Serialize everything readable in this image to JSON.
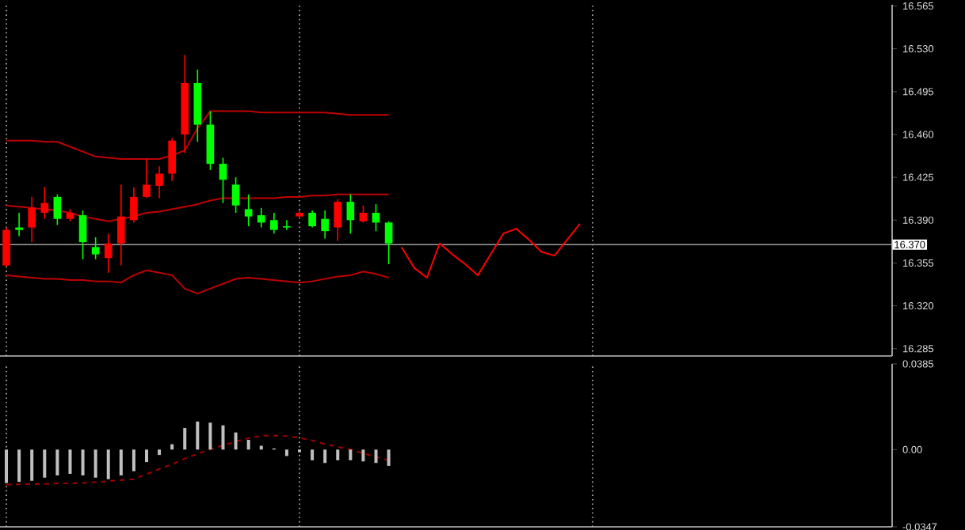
{
  "chart_data": [
    {
      "type": "candlestick",
      "categories": [
        null,
        null,
        null,
        null,
        null,
        null,
        null,
        null,
        null,
        null,
        null,
        null,
        null,
        null,
        null,
        null,
        null,
        null,
        null,
        null,
        null,
        null,
        null,
        null,
        null,
        null,
        null,
        null,
        null,
        null,
        null,
        null,
        null,
        null,
        null,
        null,
        null,
        null,
        null,
        null,
        null,
        null,
        null,
        null,
        null,
        null,
        null,
        null,
        null,
        null,
        null,
        null,
        null,
        null,
        null,
        null,
        null,
        null,
        null,
        null,
        null,
        null,
        null,
        null,
        null,
        null,
        null,
        null,
        null,
        null
      ],
      "ohlc": [
        [
          16.353,
          16.384,
          16.352,
          16.382
        ],
        [
          16.384,
          16.396,
          16.377,
          16.382
        ],
        [
          16.384,
          16.409,
          16.372,
          16.4
        ],
        [
          16.396,
          16.417,
          16.391,
          16.404
        ],
        [
          16.409,
          16.411,
          16.386,
          16.391
        ],
        [
          16.391,
          16.399,
          16.389,
          16.396
        ],
        [
          16.394,
          16.398,
          16.358,
          16.372
        ],
        [
          16.368,
          16.376,
          16.358,
          16.362
        ],
        [
          16.359,
          16.379,
          16.347,
          16.371
        ],
        [
          16.371,
          16.419,
          16.353,
          16.393
        ],
        [
          16.39,
          16.417,
          16.388,
          16.409
        ],
        [
          16.409,
          16.44,
          16.408,
          16.419
        ],
        [
          16.418,
          16.434,
          16.408,
          16.428
        ],
        [
          16.428,
          16.457,
          16.422,
          16.455
        ],
        [
          16.46,
          16.525,
          16.445,
          16.502
        ],
        [
          16.502,
          16.513,
          16.454,
          16.468
        ],
        [
          16.468,
          16.479,
          16.431,
          16.436
        ],
        [
          16.436,
          16.441,
          16.404,
          16.423
        ],
        [
          16.419,
          16.425,
          16.396,
          16.402
        ],
        [
          16.399,
          16.411,
          16.385,
          16.393
        ],
        [
          16.394,
          16.4,
          16.384,
          16.388
        ],
        [
          16.39,
          16.396,
          16.379,
          16.382
        ],
        [
          16.385,
          16.39,
          16.382,
          16.384
        ],
        [
          16.393,
          16.398,
          16.391,
          16.396
        ],
        [
          16.396,
          16.398,
          16.384,
          16.385
        ],
        [
          16.391,
          16.398,
          16.375,
          16.381
        ],
        [
          16.384,
          16.407,
          16.373,
          16.405
        ],
        [
          16.405,
          16.411,
          16.379,
          16.39
        ],
        [
          16.389,
          16.402,
          16.388,
          16.396
        ],
        [
          16.396,
          16.403,
          16.381,
          16.388
        ],
        [
          16.388,
          16.389,
          16.354,
          16.371
        ],
        null,
        null,
        null,
        null,
        null,
        null,
        null,
        null,
        null,
        null,
        null,
        null,
        null,
        null,
        null,
        null,
        null,
        null,
        null,
        null,
        null,
        null,
        null,
        null,
        null,
        null,
        null,
        null,
        null,
        null,
        null,
        null,
        null,
        null,
        null,
        null,
        null,
        null,
        null
      ],
      "colors": [
        "#ff0000",
        "#00ff00",
        "#ff0000",
        "#ff0000",
        "#00ff00",
        "#ff0000",
        "#00ff00",
        "#00ff00",
        "#ff0000",
        "#ff0000",
        "#ff0000",
        "#ff0000",
        "#ff0000",
        "#ff0000",
        "#ff0000",
        "#00ff00",
        "#00ff00",
        "#00ff00",
        "#00ff00",
        "#00ff00",
        "#00ff00",
        "#00ff00",
        "#00ff00",
        "#ff0000",
        "#00ff00",
        "#00ff00",
        "#ff0000",
        "#00ff00",
        "#ff0000",
        "#00ff00",
        "#00ff00",
        null,
        null,
        null,
        null,
        null,
        null,
        null,
        null,
        null,
        null,
        null,
        null,
        null,
        null,
        null,
        null,
        null,
        null,
        null,
        null,
        null,
        null,
        null,
        null,
        null,
        null,
        null,
        null,
        null,
        null,
        null,
        null,
        null,
        null,
        null,
        null,
        null,
        null,
        null
      ],
      "series": [
        {
          "type": "line",
          "color": "#c00000",
          "values": [
            16.455,
            16.455,
            16.455,
            16.454,
            16.454,
            16.45,
            16.446,
            16.442,
            16.441,
            16.44,
            16.44,
            16.44,
            16.44,
            16.443,
            16.447,
            16.465,
            16.479,
            16.479,
            16.479,
            16.479,
            16.478,
            16.478,
            16.478,
            16.478,
            16.478,
            16.478,
            16.477,
            16.476,
            16.476,
            16.476,
            16.476,
            null,
            null,
            null,
            null,
            null,
            null,
            null,
            null,
            null,
            null,
            null,
            null,
            null,
            null,
            null,
            null,
            null,
            null,
            null,
            null,
            null,
            null,
            null,
            null,
            null,
            null,
            null,
            null,
            null,
            null,
            null,
            null,
            null,
            null,
            null,
            null,
            null,
            null,
            null
          ]
        },
        {
          "type": "line",
          "color": "#c00000",
          "values": [
            16.402,
            16.401,
            16.4,
            16.399,
            16.398,
            16.396,
            16.393,
            16.391,
            16.389,
            16.391,
            16.393,
            16.396,
            16.397,
            16.399,
            16.401,
            16.403,
            16.406,
            16.408,
            16.408,
            16.408,
            16.408,
            16.408,
            16.409,
            16.409,
            16.41,
            16.41,
            16.411,
            16.411,
            16.411,
            16.411,
            16.411,
            null,
            null,
            null,
            null,
            null,
            null,
            null,
            null,
            null,
            null,
            null,
            null,
            null,
            null,
            null,
            null,
            null,
            null,
            null,
            null,
            null,
            null,
            null,
            null,
            null,
            null,
            null,
            null,
            null,
            null,
            null,
            null,
            null,
            null,
            null,
            null,
            null,
            null,
            null
          ]
        },
        {
          "type": "line",
          "color": "#c00000",
          "values": [
            16.345,
            16.344,
            16.343,
            16.342,
            16.342,
            16.341,
            16.341,
            16.34,
            16.34,
            16.339,
            16.345,
            16.349,
            16.347,
            16.345,
            16.334,
            16.33,
            16.334,
            16.338,
            16.342,
            16.343,
            16.342,
            16.341,
            16.34,
            16.339,
            16.34,
            16.342,
            16.344,
            16.345,
            16.348,
            16.346,
            16.343,
            null,
            null,
            null,
            null,
            null,
            null,
            null,
            null,
            null,
            null,
            null,
            null,
            null,
            null,
            null,
            null,
            null,
            null,
            null,
            null,
            null,
            null,
            null,
            null,
            null,
            null,
            null,
            null,
            null,
            null,
            null,
            null,
            null,
            null,
            null,
            null,
            null,
            null,
            null
          ]
        },
        {
          "type": "line",
          "color": "#ff0000",
          "values": [
            null,
            null,
            null,
            null,
            null,
            null,
            null,
            null,
            null,
            null,
            null,
            null,
            null,
            null,
            null,
            null,
            null,
            null,
            null,
            null,
            null,
            null,
            null,
            null,
            null,
            null,
            null,
            null,
            null,
            null,
            null,
            16.368,
            16.351,
            16.343,
            16.371,
            16.362,
            16.354,
            16.345,
            16.362,
            16.379,
            16.383,
            16.374,
            16.364,
            16.361,
            16.374,
            16.387,
            null,
            null,
            null,
            null,
            null,
            null,
            null,
            null,
            null,
            null,
            null,
            null,
            null,
            null,
            null,
            null,
            null,
            null,
            null,
            null,
            null,
            null,
            null,
            null
          ]
        }
      ],
      "ylim": [
        16.279,
        16.566
      ],
      "yticks": [
        16.285,
        {
          "value": 16.32,
          "label": "16.320"
        },
        16.355,
        {
          "value": 16.39,
          "label": "16.390"
        },
        16.425,
        {
          "value": 16.46,
          "label": "16.460"
        },
        16.495,
        {
          "value": 16.53,
          "label": "16.530"
        },
        16.565
      ],
      "ref_lines": [
        {
          "axis": "y",
          "value": 16.37,
          "label": "16.370",
          "color": "#a0a0a0",
          "line_style": "solid"
        }
      ],
      "tick_labels": "y",
      "grid": "x"
    },
    {
      "type": "bar",
      "categories": [
        null,
        null,
        null,
        null,
        null,
        null,
        null,
        null,
        null,
        null,
        null,
        null,
        null,
        null,
        null,
        null,
        null,
        null,
        null,
        null,
        null,
        null,
        null,
        null,
        null,
        null,
        null,
        null,
        null,
        null,
        null,
        null,
        null,
        null,
        null,
        null,
        null,
        null,
        null,
        null,
        null,
        null,
        null,
        null,
        null,
        null,
        null,
        null,
        null,
        null,
        null,
        null,
        null,
        null,
        null,
        null,
        null,
        null,
        null,
        null,
        null,
        null,
        null,
        null,
        null,
        null,
        null,
        null,
        null,
        null
      ],
      "values": [
        -0.015,
        -0.0145,
        -0.014,
        -0.0126,
        -0.0116,
        -0.0109,
        -0.0116,
        -0.0126,
        -0.0133,
        -0.0116,
        -0.0097,
        -0.0056,
        -0.0024,
        0.0024,
        0.0097,
        0.0126,
        0.0121,
        0.0109,
        0.0077,
        0.0044,
        0.0017,
        0.0005,
        -0.0029,
        -0.0012,
        -0.0048,
        -0.006,
        -0.0048,
        -0.0048,
        -0.0053,
        -0.006,
        -0.0073,
        null,
        null,
        null,
        null,
        null,
        null,
        null,
        null,
        null,
        null,
        null,
        null,
        null,
        null,
        null,
        null,
        null,
        null,
        null,
        null,
        null,
        null,
        null,
        null,
        null,
        null,
        null,
        null,
        null,
        null,
        null,
        null,
        null,
        null,
        null,
        null,
        null,
        null,
        null
      ],
      "color": "#c0c0c0",
      "series": [
        {
          "type": "line",
          "color": "#a00000",
          "line_style": "dashed",
          "values": [
            -0.0157,
            -0.0156,
            -0.0155,
            -0.0154,
            -0.0152,
            -0.0151,
            -0.015,
            -0.0146,
            -0.0142,
            -0.0137,
            -0.0133,
            -0.011,
            -0.0087,
            -0.0066,
            -0.0041,
            -0.0019,
            0.0001,
            0.0019,
            0.0036,
            0.0051,
            0.0062,
            0.0063,
            0.0061,
            0.0053,
            0.0041,
            0.0025,
            0.0013,
            0,
            -0.0017,
            -0.0033,
            -0.0048,
            null,
            null,
            null,
            null,
            null,
            null,
            null,
            null,
            null,
            null,
            null,
            null,
            null,
            null,
            null,
            null,
            null,
            null,
            null,
            null,
            null,
            null,
            null,
            null,
            null,
            null,
            null,
            null,
            null,
            null,
            null,
            null,
            null,
            null,
            null,
            null,
            null,
            null,
            null
          ]
        }
      ],
      "ylim": [
        -0.0347,
        0.0385
      ],
      "yticks": [
        -0.0347,
        {
          "value": 0,
          "label": "0.00"
        },
        0.0385
      ],
      "tick_labels": "y",
      "grid": "x"
    }
  ]
}
